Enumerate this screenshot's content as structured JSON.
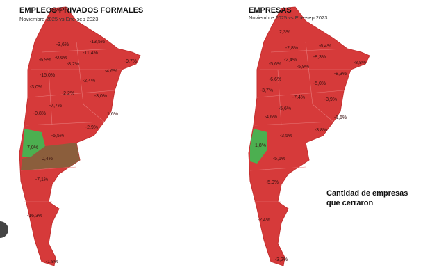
{
  "maps": [
    {
      "title": "EMPLEOS PRIVADOS FORMALES",
      "subtitle": "Noviembre 2025 vs Ene-sep 2023",
      "labels": [
        "-5,0%",
        "-3,6%",
        "-13,5%",
        "-11,4%",
        "-6,9%",
        "-0,6%",
        "-8,2%",
        "-9,7%",
        "-4,6%",
        "-15,0%",
        "-2,4%",
        "-3,0%",
        "-2,2%",
        "-3,0%",
        "-7,7%",
        "-0,8%",
        "1,6%",
        "-2,9%",
        "-5,5%",
        "7,0%",
        "0,4%",
        "-7,1%",
        "-16,3%",
        "-1,8%"
      ]
    },
    {
      "title": "EMPRESAS",
      "subtitle": "Noviembre 2025 vs Ene-sep 2023",
      "labels": [
        "2,3%",
        "-2,8%",
        "-6,4%",
        "-2,4%",
        "-8,3%",
        "-5,6%",
        "-5,9%",
        "-8,8%",
        "-6,6%",
        "-8,3%",
        "-5,0%",
        "-3,7%",
        "-7,4%",
        "-3,9%",
        "-5,6%",
        "-4,6%",
        "-1,6%",
        "-3,5%",
        "-3,8%",
        "1,8%",
        "-5,1%",
        "-5,9%",
        "-2,4%",
        "-3,2%"
      ],
      "annotation": [
        "Cantidad de empresas",
        "que cerraron"
      ]
    }
  ]
}
